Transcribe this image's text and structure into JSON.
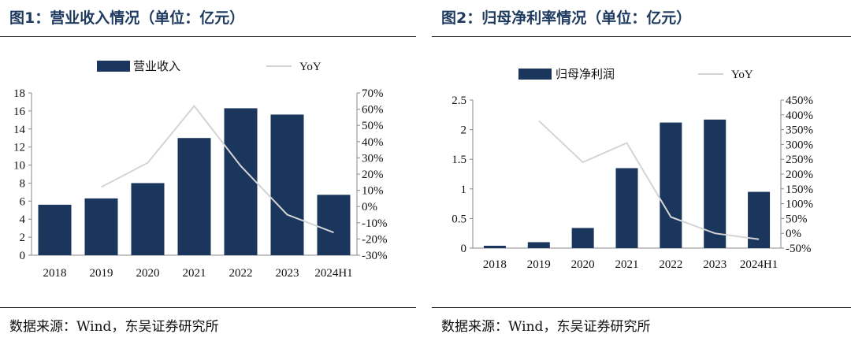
{
  "charts": [
    {
      "figure_title": "图1：营业收入情况（单位：亿元）",
      "source": "数据来源：Wind，东吴证券研究所",
      "legend": {
        "bar": "营业收入",
        "line": "YoY"
      }
    },
    {
      "figure_title": "图2：归母净利率情况（单位：亿元）",
      "source": "数据来源：Wind，东吴证券研究所",
      "legend": {
        "bar": "归母净利润",
        "line": "YoY"
      }
    }
  ],
  "chart_data": [
    {
      "type": "bar",
      "categories": [
        "2018",
        "2019",
        "2020",
        "2021",
        "2022",
        "2023",
        "2024H1"
      ],
      "series": [
        {
          "name": "营业收入",
          "type": "bar",
          "axis": "left",
          "values": [
            5.6,
            6.3,
            8.0,
            13.0,
            16.3,
            15.6,
            6.7
          ]
        },
        {
          "name": "YoY",
          "type": "line",
          "axis": "right",
          "values": [
            null,
            12,
            27,
            62,
            25,
            -5,
            -16
          ]
        }
      ],
      "y_left": {
        "ylim": [
          0,
          18
        ],
        "ticks": [
          0,
          2,
          4,
          6,
          8,
          10,
          12,
          14,
          16,
          18
        ],
        "tick_labels": [
          "0",
          "2",
          "4",
          "6",
          "8",
          "10",
          "12",
          "14",
          "16",
          "18"
        ]
      },
      "y_right": {
        "ylim": [
          -30,
          70
        ],
        "ticks": [
          -30,
          -20,
          -10,
          0,
          10,
          20,
          30,
          40,
          50,
          60,
          70
        ],
        "tick_labels": [
          "-30%",
          "-20%",
          "-10%",
          "0%",
          "10%",
          "20%",
          "30%",
          "40%",
          "50%",
          "60%",
          "70%"
        ]
      },
      "colors": {
        "bar": "#1b365d",
        "line": "#d4d4d4"
      },
      "legend_position": "top",
      "grid": false
    },
    {
      "type": "bar",
      "categories": [
        "2018",
        "2019",
        "2020",
        "2021",
        "2022",
        "2023",
        "2024H1"
      ],
      "series": [
        {
          "name": "归母净利润",
          "type": "bar",
          "axis": "left",
          "values": [
            0.04,
            0.1,
            0.34,
            1.35,
            2.12,
            2.17,
            0.95
          ]
        },
        {
          "name": "YoY",
          "type": "line",
          "axis": "right",
          "values": [
            null,
            380,
            240,
            305,
            55,
            0,
            -20
          ]
        }
      ],
      "y_left": {
        "ylim": [
          0,
          2.5
        ],
        "ticks": [
          0,
          0.5,
          1,
          1.5,
          2,
          2.5
        ],
        "tick_labels": [
          "0",
          "0.5",
          "1",
          "1.5",
          "2",
          "2.5"
        ]
      },
      "y_right": {
        "ylim": [
          -50,
          450
        ],
        "ticks": [
          -50,
          0,
          50,
          100,
          150,
          200,
          250,
          300,
          350,
          400,
          450
        ],
        "tick_labels": [
          "-50%",
          "0%",
          "50%",
          "100%",
          "150%",
          "200%",
          "250%",
          "300%",
          "350%",
          "400%",
          "450%"
        ]
      },
      "colors": {
        "bar": "#1b365d",
        "line": "#d4d4d4"
      },
      "legend_position": "top",
      "grid": false
    }
  ]
}
